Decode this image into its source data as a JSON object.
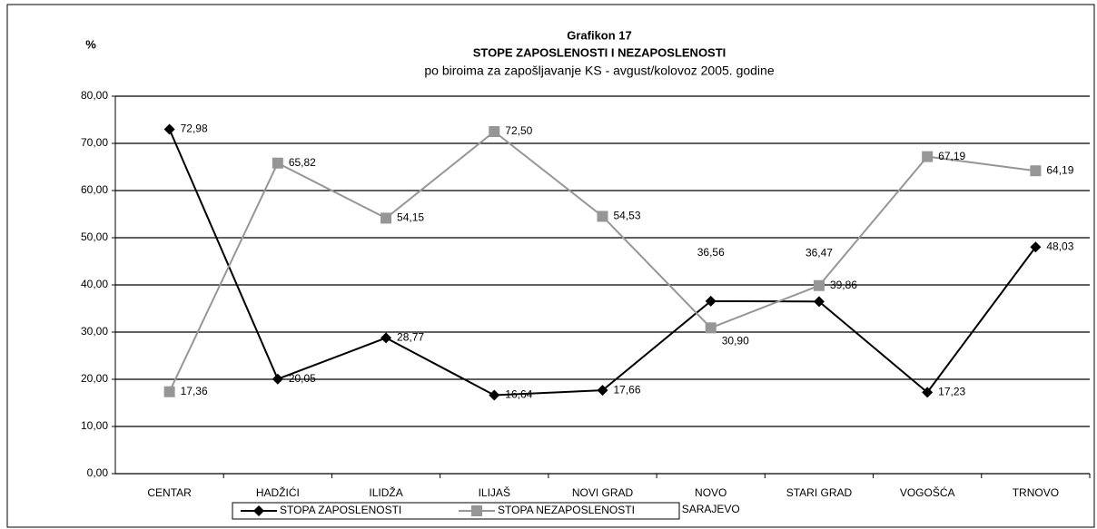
{
  "chart_data": {
    "type": "line",
    "title": "Grafikon 17",
    "subtitle_main": "STOPE ZAPOSLENOSTI I NEZAPOSLENOSTI",
    "subtitle": "po biroima za zapošljavanje KS -  avgust/kolovoz 2005. godine",
    "y_label": "%",
    "categories": [
      "CENTAR",
      "HADŽIĆI",
      "ILIDŽA",
      "ILIJAŠ",
      "NOVI GRAD",
      "NOVO\nSARAJEVO",
      "STARI GRAD",
      "VOGOŠĆA",
      "TRNOVO"
    ],
    "series": [
      {
        "name": "STOPA ZAPOSLENOSTI",
        "color": "#000000",
        "marker": "diamond",
        "values": [
          72.98,
          20.05,
          28.77,
          16.64,
          17.66,
          36.56,
          36.47,
          17.23,
          48.03
        ],
        "value_labels": [
          "72,98",
          "20,05",
          "28,77",
          "16,64",
          "17,66",
          "36,56",
          "36,47",
          "17,23",
          "48,03"
        ]
      },
      {
        "name": "STOPA NEZAPOSLENOSTI",
        "color": "#969696",
        "marker": "square",
        "values": [
          17.36,
          65.82,
          54.15,
          72.5,
          54.53,
          30.9,
          39.86,
          67.19,
          64.19
        ],
        "value_labels": [
          "17,36",
          "65,82",
          "54,15",
          "72,50",
          "54,53",
          "30,90",
          "39,86",
          "67,19",
          "64,19"
        ]
      }
    ],
    "ylim": [
      0,
      80
    ],
    "yticks": [
      {
        "value": 0,
        "label": "0,00"
      },
      {
        "value": 10,
        "label": "10,00"
      },
      {
        "value": 20,
        "label": "20,00"
      },
      {
        "value": 30,
        "label": "30,00"
      },
      {
        "value": 40,
        "label": "40,00"
      },
      {
        "value": 50,
        "label": "50,00"
      },
      {
        "value": 60,
        "label": "60,00"
      },
      {
        "value": 70,
        "label": "70,00"
      },
      {
        "value": 80,
        "label": "80,00"
      }
    ],
    "grid": true,
    "legend": "bottom"
  }
}
